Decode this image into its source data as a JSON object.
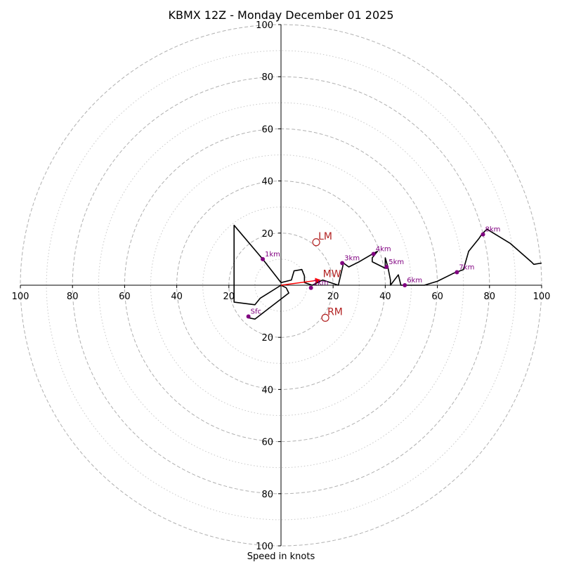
{
  "chart_data": {
    "type": "scatter",
    "subtype": "hodograph",
    "title": "KBMX 12Z - Monday December 01 2025",
    "xlabel": "Speed in knots",
    "range": [
      -100,
      100
    ],
    "ring_major": [
      20,
      40,
      60,
      80,
      100
    ],
    "ring_minor": [
      10,
      30,
      50,
      70,
      90
    ],
    "x_ticks": [
      {
        "value": -100,
        "label": "100"
      },
      {
        "value": -80,
        "label": "80"
      },
      {
        "value": -60,
        "label": "60"
      },
      {
        "value": -40,
        "label": "40"
      },
      {
        "value": -20,
        "label": "20"
      },
      {
        "value": 20,
        "label": "20"
      },
      {
        "value": 40,
        "label": "40"
      },
      {
        "value": 60,
        "label": "60"
      },
      {
        "value": 80,
        "label": "80"
      },
      {
        "value": 100,
        "label": "100"
      }
    ],
    "y_ticks": [
      {
        "value": 100,
        "label": "100"
      },
      {
        "value": 80,
        "label": "80"
      },
      {
        "value": 60,
        "label": "60"
      },
      {
        "value": 40,
        "label": "40"
      },
      {
        "value": 20,
        "label": "20"
      },
      {
        "value": -20,
        "label": "20"
      },
      {
        "value": -40,
        "label": "40"
      },
      {
        "value": -60,
        "label": "60"
      },
      {
        "value": -80,
        "label": "80"
      },
      {
        "value": -100,
        "label": "100"
      }
    ],
    "trace": [
      [
        -12.5,
        -12.5
      ],
      [
        -10,
        -13
      ],
      [
        3,
        -3
      ],
      [
        2,
        -1
      ],
      [
        0,
        0
      ],
      [
        -8,
        -5
      ],
      [
        -10,
        -7.5
      ],
      [
        -18,
        -6.5
      ],
      [
        -18,
        23
      ],
      [
        -7,
        10
      ],
      [
        0,
        1
      ],
      [
        4,
        2
      ],
      [
        5,
        5.5
      ],
      [
        8,
        6
      ],
      [
        9,
        3.5
      ],
      [
        9,
        1
      ],
      [
        12,
        0
      ],
      [
        16,
        2
      ],
      [
        22,
        0
      ],
      [
        24,
        8.5
      ],
      [
        26,
        7
      ],
      [
        30,
        9
      ],
      [
        36,
        12.5
      ],
      [
        37,
        13
      ],
      [
        35,
        10.5
      ],
      [
        35,
        9
      ],
      [
        40,
        6.5
      ],
      [
        40,
        10.5
      ],
      [
        41,
        7
      ],
      [
        42,
        2
      ],
      [
        42,
        0
      ],
      [
        45,
        4
      ],
      [
        46,
        0
      ],
      [
        55,
        0
      ],
      [
        60,
        1.5
      ],
      [
        66,
        4.5
      ],
      [
        70,
        6
      ],
      [
        72,
        13
      ],
      [
        76,
        18
      ],
      [
        77,
        19.5
      ],
      [
        79,
        21.5
      ],
      [
        88,
        16
      ],
      [
        96,
        9
      ],
      [
        97,
        8
      ],
      [
        100,
        8.5
      ]
    ],
    "height_markers": [
      {
        "label": "Sfc",
        "u": -12.5,
        "v": -12
      },
      {
        "label": "1km",
        "u": -7,
        "v": 10
      },
      {
        "label": "2km",
        "u": 11.5,
        "v": -1
      },
      {
        "label": "3km",
        "u": 23.5,
        "v": 8.5
      },
      {
        "label": "4km",
        "u": 35.5,
        "v": 12
      },
      {
        "label": "5km",
        "u": 40.5,
        "v": 7
      },
      {
        "label": "6km",
        "u": 47.5,
        "v": 0
      },
      {
        "label": "7km",
        "u": 67.5,
        "v": 5
      },
      {
        "label": "8km",
        "u": 77.5,
        "v": 19.5
      }
    ],
    "motions": [
      {
        "label": "LM",
        "u": 13.5,
        "v": 16.5
      },
      {
        "label": "RM",
        "u": 17,
        "v": -12.5
      },
      {
        "label": "MW",
        "u": 15,
        "v": 2
      }
    ],
    "mean_wind_vector": {
      "u": 15,
      "v": 2
    },
    "colors": {
      "trace": "#000000",
      "marker": "#800080",
      "motion": "#b22222",
      "vector": "#ff0000",
      "ring": "#b0b0b0",
      "minor_ring": "#c8c8c8"
    }
  }
}
